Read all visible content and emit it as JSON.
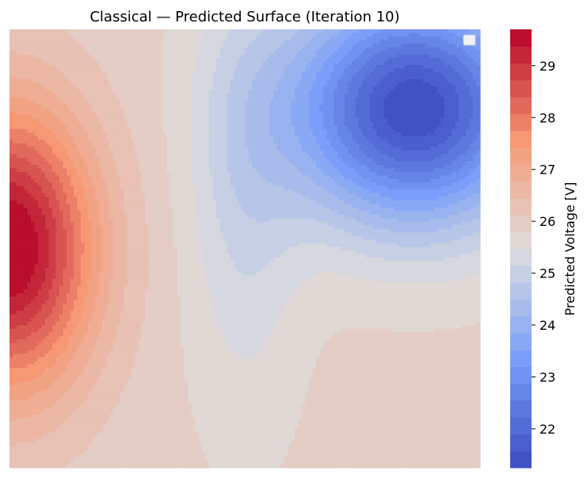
{
  "chart_data": {
    "type": "heatmap",
    "title": "Classical — Predicted Surface (Iteration 10)",
    "colorbar": {
      "label": "Predicted Voltage [V]",
      "range": [
        21.25,
        29.7
      ],
      "ticks": [
        22,
        23,
        24,
        25,
        26,
        27,
        28,
        29
      ],
      "levels": 26,
      "colormap": "coolwarm"
    },
    "axes_visible": false,
    "legend": {
      "placement": "top-right",
      "entries": []
    },
    "surface": {
      "baseline": 25.9,
      "features": [
        {
          "name": "high",
          "x": 0.0,
          "y": 0.5,
          "sx": 0.18,
          "sy": 0.32,
          "amp": 3.9
        },
        {
          "name": "low",
          "x": 0.86,
          "y": 0.18,
          "sx": 0.26,
          "sy": 0.26,
          "amp": -4.6
        },
        {
          "name": "ridge",
          "x": 0.5,
          "y": 0.35,
          "sx": 0.12,
          "sy": 0.5,
          "amp": -0.8
        }
      ]
    }
  }
}
